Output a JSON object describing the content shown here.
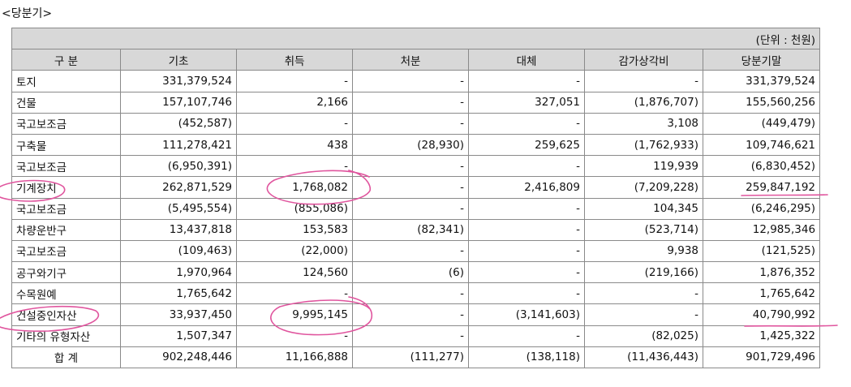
{
  "period_label": "<당분기>",
  "unit_label": "(단위 : 천원)",
  "columns": [
    "구   분",
    "기초",
    "취득",
    "처분",
    "대체",
    "감가상각비",
    "당분기말"
  ],
  "rows": [
    [
      "토지",
      "331,379,524",
      "-",
      "-",
      "-",
      "-",
      "331,379,524"
    ],
    [
      "건물",
      "157,107,746",
      "2,166",
      "-",
      "327,051",
      "(1,876,707)",
      "155,560,256"
    ],
    [
      "국고보조금",
      "(452,587)",
      "-",
      "-",
      "-",
      "3,108",
      "(449,479)"
    ],
    [
      "구축물",
      "111,278,421",
      "438",
      "(28,930)",
      "259,625",
      "(1,762,933)",
      "109,746,621"
    ],
    [
      "국고보조금",
      "(6,950,391)",
      "-",
      "-",
      "-",
      "119,939",
      "(6,830,452)"
    ],
    [
      "기계장치",
      "262,871,529",
      "1,768,082",
      "-",
      "2,416,809",
      "(7,209,228)",
      "259,847,192"
    ],
    [
      "국고보조금",
      "(5,495,554)",
      "(855,086)",
      "-",
      "-",
      "104,345",
      "(6,246,295)"
    ],
    [
      "차량운반구",
      "13,437,818",
      "153,583",
      "(82,341)",
      "-",
      "(523,714)",
      "12,985,346"
    ],
    [
      "국고보조금",
      "(109,463)",
      "(22,000)",
      "-",
      "-",
      "9,938",
      "(121,525)"
    ],
    [
      "공구와기구",
      "1,970,964",
      "124,560",
      "(6)",
      "-",
      "(219,166)",
      "1,876,352"
    ],
    [
      "수목원예",
      "1,765,642",
      "-",
      "-",
      "-",
      "-",
      "1,765,642"
    ],
    [
      "건설중인자산",
      "33,937,450",
      "9,995,145",
      "-",
      "(3,141,603)",
      "-",
      "40,790,992"
    ],
    [
      "기타의 유형자산",
      "1,507,347",
      "-",
      "-",
      "-",
      "(82,025)",
      "1,425,322"
    ]
  ],
  "total": [
    "합    계",
    "902,248,446",
    "11,166,888",
    "(111,277)",
    "(138,118)",
    "(11,436,443)",
    "901,729,496"
  ],
  "annotation_color": "#e0559e"
}
